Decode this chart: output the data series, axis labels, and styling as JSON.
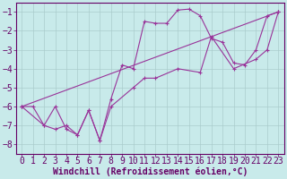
{
  "xlabel": "Windchill (Refroidissement éolien,°C)",
  "background_color": "#c8eaea",
  "grid_color": "#aacccc",
  "line_color": "#993399",
  "text_color": "#660066",
  "xlim": [
    -0.5,
    23.5
  ],
  "ylim": [
    -8.5,
    -0.5
  ],
  "yticks": [
    -8,
    -7,
    -6,
    -5,
    -4,
    -3,
    -2,
    -1
  ],
  "xticks": [
    0,
    1,
    2,
    3,
    4,
    5,
    6,
    7,
    8,
    9,
    10,
    11,
    12,
    13,
    14,
    15,
    16,
    17,
    18,
    19,
    20,
    21,
    22,
    23
  ],
  "line1_x": [
    0,
    1,
    2,
    3,
    4,
    5,
    6,
    7,
    8,
    9,
    10,
    11,
    12,
    13,
    14,
    15,
    16,
    17,
    18,
    19,
    20,
    21,
    22,
    23
  ],
  "line1_y": [
    -6.0,
    -6.0,
    -7.0,
    -6.0,
    -7.2,
    -7.5,
    -6.2,
    -7.8,
    -5.6,
    -3.8,
    -4.0,
    -1.5,
    -1.6,
    -1.6,
    -0.9,
    -0.85,
    -1.2,
    -2.4,
    -2.6,
    -3.7,
    -3.8,
    -3.0,
    -1.2,
    -1.0
  ],
  "line2_x": [
    0,
    2,
    3,
    4,
    5,
    6,
    7,
    8,
    10,
    11,
    12,
    14,
    16,
    17,
    19,
    21,
    22,
    23
  ],
  "line2_y": [
    -6.0,
    -7.0,
    -7.2,
    -7.0,
    -7.5,
    -6.2,
    -7.8,
    -6.0,
    -5.0,
    -4.5,
    -4.5,
    -4.0,
    -4.2,
    -2.3,
    -4.0,
    -3.5,
    -3.0,
    -1.0
  ],
  "line3_x": [
    0,
    23
  ],
  "line3_y": [
    -6.0,
    -1.0
  ],
  "tick_fontsize": 7.0,
  "xlabel_fontsize": 7.0
}
